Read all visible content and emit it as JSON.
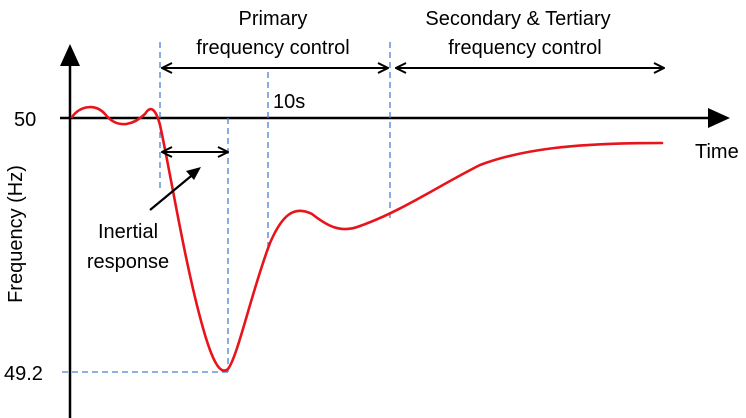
{
  "diagram": {
    "labels": {
      "primary_line1": "Primary",
      "primary_line2": "frequency control",
      "secondary_line1": "Secondary & Tertiary",
      "secondary_line2": "frequency control",
      "ten_seconds": "10s",
      "nominal": "50",
      "nadir": "49.2",
      "time_axis": "Time",
      "frequency_axis": "Frequency (Hz)",
      "inertial_line1": "Inertial",
      "inertial_line2": "response"
    },
    "colors": {
      "curve": "#e8141b",
      "guide_lines": "#4a7fd4",
      "axes": "#000000"
    }
  }
}
